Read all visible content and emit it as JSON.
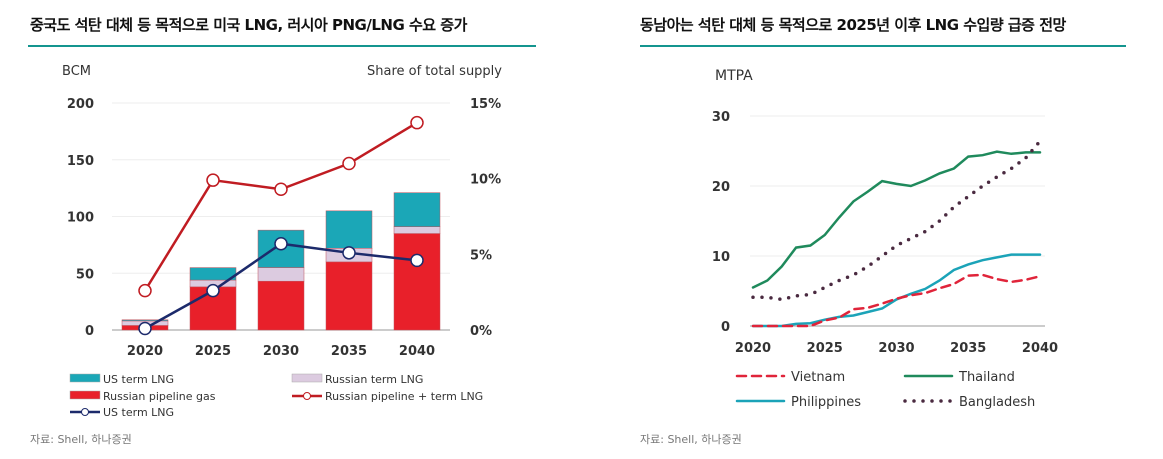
{
  "left": {
    "title": "중국도 석탄 대체 등 목적으로 미국 LNG, 러시아 PNG/LNG 수요 증가",
    "source": "자료: Shell, 하나증권"
  },
  "right": {
    "title": "동남아는 석탄 대체 등 목적으로 2025년 이후 LNG 수입량 급증 전망",
    "source": "자료: Shell, 하나증권"
  },
  "chart_data": [
    {
      "type": "bar",
      "stacked": true,
      "categories": [
        "2020",
        "2025",
        "2030",
        "2035",
        "2040"
      ],
      "ylabel": "BCM",
      "ylabel_right": "Share of total supply",
      "ylim": [
        0,
        200
      ],
      "yticks": [
        "0",
        "50",
        "100",
        "150",
        "200"
      ],
      "ylim_right": [
        0,
        15
      ],
      "yticks_right": [
        "0%",
        "5%",
        "10%",
        "15%"
      ],
      "grid": true,
      "legend_position": "bottom",
      "series": [
        {
          "name": "Russian pipeline gas",
          "kind": "bar",
          "color": "#e8202a",
          "values": [
            4,
            38,
            43,
            60,
            85
          ]
        },
        {
          "name": "Russian term LNG",
          "kind": "bar",
          "color": "#dccbe0",
          "values": [
            4,
            6,
            12,
            12,
            6
          ]
        },
        {
          "name": "US term LNG",
          "kind": "bar",
          "color": "#1ba7b7",
          "values": [
            1,
            11,
            33,
            33,
            30
          ]
        },
        {
          "name": "Russian pipeline + term LNG",
          "kind": "line",
          "axis": "right",
          "color": "#c01c22",
          "values": [
            2.6,
            9.9,
            9.3,
            11.0,
            13.7
          ]
        },
        {
          "name": "US term LNG",
          "kind": "line",
          "axis": "right",
          "color": "#1c2a6b",
          "values": [
            0.1,
            2.6,
            5.7,
            5.1,
            4.6
          ]
        }
      ]
    },
    {
      "type": "line",
      "x": [
        2020,
        2021,
        2022,
        2023,
        2024,
        2025,
        2026,
        2027,
        2028,
        2029,
        2030,
        2031,
        2032,
        2033,
        2034,
        2035,
        2036,
        2037,
        2038,
        2039,
        2040
      ],
      "xticks": [
        "2020",
        "2025",
        "2030",
        "2035",
        "2040"
      ],
      "ylabel": "MTPA",
      "ylim": [
        0,
        30
      ],
      "yticks": [
        "0",
        "10",
        "20",
        "30"
      ],
      "grid": true,
      "legend_position": "bottom",
      "series": [
        {
          "name": "Vietnam",
          "style": "dashed",
          "color": "#e0243a",
          "values": [
            0,
            0,
            0,
            0,
            0,
            0.8,
            1.2,
            2.4,
            2.6,
            3.2,
            3.9,
            4.4,
            4.7,
            5.4,
            6.0,
            7.2,
            7.3,
            6.7,
            6.3,
            6.6,
            7.1
          ]
        },
        {
          "name": "Thailand",
          "style": "solid",
          "color": "#1f8a5c",
          "values": [
            5.5,
            6.5,
            8.5,
            11.2,
            11.5,
            13,
            15.5,
            17.8,
            19.2,
            20.7,
            20.3,
            20,
            20.8,
            21.8,
            22.5,
            24.2,
            24.4,
            24.9,
            24.6,
            24.8,
            24.8
          ]
        },
        {
          "name": "Philippines",
          "style": "solid",
          "color": "#1ba3b8",
          "values": [
            0,
            0,
            0,
            0.3,
            0.4,
            0.9,
            1.3,
            1.5,
            2,
            2.5,
            3.8,
            4.6,
            5.3,
            6.5,
            8,
            8.8,
            9.4,
            9.8,
            10.2,
            10.2,
            10.2
          ]
        },
        {
          "name": "Bangladesh",
          "style": "dotted",
          "color": "#4a2a40",
          "values": [
            4.1,
            4.1,
            3.8,
            4.3,
            4.5,
            5.5,
            6.5,
            7.3,
            8.5,
            10,
            11.5,
            12.5,
            13.5,
            15,
            17,
            18.5,
            20,
            21.3,
            22.5,
            24,
            26.4
          ]
        }
      ]
    }
  ]
}
